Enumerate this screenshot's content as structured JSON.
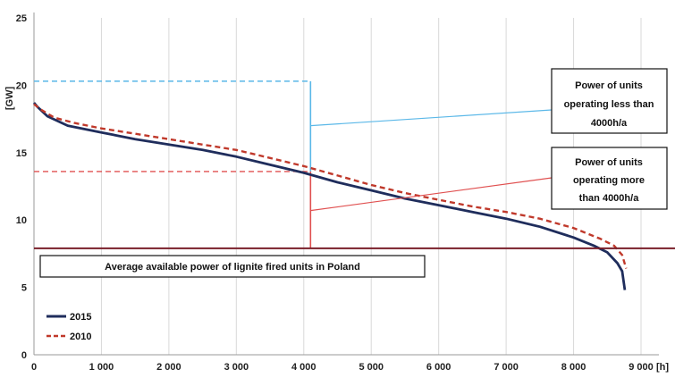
{
  "chart_data": {
    "type": "line",
    "title": "",
    "xlabel": "[h]",
    "ylabel": "[GW]",
    "xlim": [
      0,
      9000
    ],
    "ylim": [
      0,
      25
    ],
    "x_ticks": [
      0,
      1000,
      2000,
      3000,
      4000,
      5000,
      6000,
      7000,
      8000,
      9000
    ],
    "x_tick_labels": [
      "0",
      "1 000",
      "2 000",
      "3 000",
      "4 000",
      "5 000",
      "6 000",
      "7 000",
      "8 000",
      "9 000"
    ],
    "y_ticks": [
      0,
      5,
      10,
      15,
      20,
      25
    ],
    "y_tick_labels": [
      "0",
      "5",
      "10",
      "15",
      "20",
      "25"
    ],
    "grid": {
      "x": true,
      "y": false
    },
    "legend_position": "bottom-left",
    "series": [
      {
        "name": "2015",
        "color": "#1f2d5c",
        "style": "solid",
        "points": [
          [
            0,
            18.7
          ],
          [
            50,
            18.4
          ],
          [
            200,
            17.7
          ],
          [
            500,
            17.0
          ],
          [
            1000,
            16.5
          ],
          [
            1500,
            16.0
          ],
          [
            2000,
            15.6
          ],
          [
            2500,
            15.2
          ],
          [
            3000,
            14.7
          ],
          [
            3500,
            14.1
          ],
          [
            4000,
            13.5
          ],
          [
            4500,
            12.8
          ],
          [
            5000,
            12.2
          ],
          [
            5500,
            11.6
          ],
          [
            6000,
            11.1
          ],
          [
            6500,
            10.6
          ],
          [
            7000,
            10.1
          ],
          [
            7500,
            9.5
          ],
          [
            8000,
            8.7
          ],
          [
            8300,
            8.1
          ],
          [
            8500,
            7.6
          ],
          [
            8650,
            6.8
          ],
          [
            8720,
            6.2
          ],
          [
            8760,
            4.8
          ]
        ]
      },
      {
        "name": "2010",
        "color": "#c0392b",
        "style": "dashed",
        "points": [
          [
            0,
            18.6
          ],
          [
            100,
            18.2
          ],
          [
            300,
            17.6
          ],
          [
            600,
            17.2
          ],
          [
            1000,
            16.8
          ],
          [
            1500,
            16.4
          ],
          [
            2000,
            16.0
          ],
          [
            2500,
            15.6
          ],
          [
            3000,
            15.2
          ],
          [
            3500,
            14.6
          ],
          [
            4000,
            14.0
          ],
          [
            4500,
            13.3
          ],
          [
            5000,
            12.6
          ],
          [
            5500,
            12.0
          ],
          [
            6000,
            11.5
          ],
          [
            6500,
            11.0
          ],
          [
            7000,
            10.6
          ],
          [
            7500,
            10.1
          ],
          [
            8000,
            9.4
          ],
          [
            8400,
            8.6
          ],
          [
            8600,
            8.1
          ],
          [
            8720,
            7.4
          ],
          [
            8780,
            6.4
          ]
        ]
      }
    ],
    "reference_line": {
      "y": 7.9,
      "color": "#7a1f2a"
    },
    "markers": {
      "light_blue": {
        "color": "#5bb8e8",
        "top_y": 20.3,
        "bottom_y": 13.6,
        "x": 4100
      },
      "red": {
        "color": "#e05050",
        "top_y": 13.6,
        "bottom_y": 7.9,
        "x": 4100
      }
    },
    "annotations": {
      "less": [
        "Power of units",
        "operating less than",
        "4000h/a"
      ],
      "more": [
        "Power of units",
        "operating more",
        "than 4000h/a"
      ],
      "average": "Average available power of lignite fired units in Poland"
    }
  }
}
